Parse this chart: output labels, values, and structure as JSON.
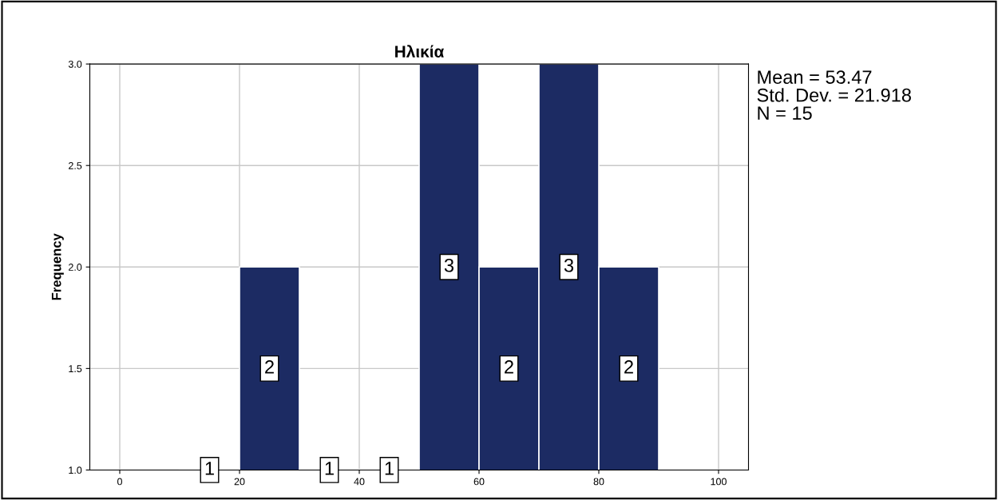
{
  "chart_data": {
    "type": "histogram",
    "title": "Ηλικία",
    "ylabel": "Frequency",
    "bins": [
      10,
      20,
      30,
      40,
      50,
      60,
      70,
      80,
      90
    ],
    "values": [
      1,
      2,
      1,
      1,
      3,
      2,
      3,
      2
    ],
    "color": "#1c2b63",
    "data_labels": true,
    "xlim": [
      -5,
      105
    ],
    "xticks": [
      0,
      20,
      40,
      60,
      80,
      100
    ],
    "ylim": [
      1,
      3
    ],
    "yticks": [
      {
        "value": 1,
        "label": "1.0"
      },
      {
        "value": 1.5,
        "label": "1.5"
      },
      {
        "value": 2,
        "label": "2.0"
      },
      {
        "value": 2.5,
        "label": "2.5"
      },
      {
        "value": 3,
        "label": "3.0"
      }
    ],
    "grid": true,
    "annotations": [
      "Mean = 53.47",
      "Std. Dev. = 21.918",
      "N = 15"
    ]
  }
}
